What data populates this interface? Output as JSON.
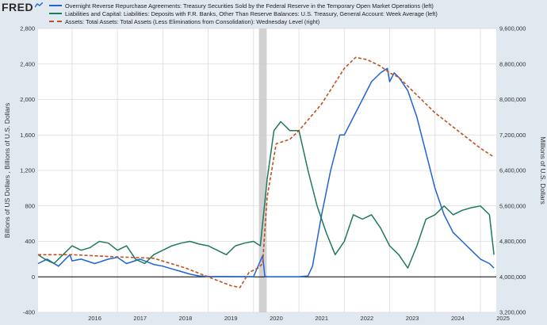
{
  "logo": {
    "text": "FRED",
    "mark_icon": "fred-line-icon"
  },
  "legend": [
    {
      "label": "Overnight Reverse Repurchase Agreements: Treasury Securities Sold by the Federal Reserve in the Temporary Open Market Operations (left)",
      "color": "#1f63d8",
      "style": "solid"
    },
    {
      "label": "Liabilities and Capital: Liabilities: Deposits with F.R. Banks, Other Than Reserve Balances: U.S. Treasury, General Account: Week Average (left)",
      "color": "#1e7a5a",
      "style": "solid"
    },
    {
      "label": "Assets: Total Assets: Total Assets (Less Eliminations from Consolidation): Wednesday Level (right)",
      "color": "#c0501f",
      "style": "dashed"
    }
  ],
  "chart_data": {
    "type": "line",
    "ylabel": "Billions of US Dollars , Billions of U.S. Dollars",
    "y2label": "Millions of U.S. Dollars",
    "ylim": [
      -400,
      2800
    ],
    "y2lim": [
      3200000,
      9600000
    ],
    "xlim": [
      2015.25,
      2025.35
    ],
    "x_ticks": [
      "2016",
      "2017",
      "2018",
      "2019",
      "2020",
      "2021",
      "2022",
      "2023",
      "2024",
      "2025"
    ],
    "y_ticks": [
      "-400",
      "0",
      "400",
      "800",
      "1,200",
      "1,600",
      "2,000",
      "2,400",
      "2,800"
    ],
    "y2_ticks": [
      "3,200,000",
      "4,000,000",
      "4,800,000",
      "5,600,000",
      "6,400,000",
      "7,200,000",
      "8,000,000",
      "8,800,000",
      "9,600,000"
    ],
    "grid": true,
    "recession_shading": [
      2020.12,
      2020.29
    ],
    "series": [
      {
        "name": "Overnight Reverse Repurchase Agreements: Treasury Securities Sold by the Federal Reserve in the Temporary Open Market Operations (left)",
        "axis": "left",
        "color": "#1f63d8",
        "x": [
          2015.25,
          2015.45,
          2015.7,
          2015.95,
          2016.0,
          2016.2,
          2016.5,
          2016.8,
          2017.0,
          2017.2,
          2017.5,
          2017.8,
          2018.0,
          2018.2,
          2018.4,
          2018.6,
          2018.8,
          2019.0,
          2019.5,
          2020.0,
          2020.2,
          2020.25,
          2020.3,
          2020.5,
          2021.0,
          2021.2,
          2021.3,
          2021.5,
          2021.7,
          2021.9,
          2022.0,
          2022.2,
          2022.4,
          2022.6,
          2022.8,
          2022.95,
          2023.0,
          2023.1,
          2023.2,
          2023.4,
          2023.6,
          2023.8,
          2024.0,
          2024.2,
          2024.4,
          2024.6,
          2024.8,
          2025.0,
          2025.2,
          2025.3
        ],
        "y": [
          150,
          200,
          120,
          250,
          180,
          200,
          150,
          200,
          220,
          150,
          200,
          140,
          120,
          90,
          60,
          30,
          10,
          5,
          3,
          2,
          240,
          5,
          2,
          1,
          1,
          10,
          120,
          700,
          1200,
          1600,
          1600,
          1800,
          2000,
          2200,
          2300,
          2350,
          2200,
          2300,
          2250,
          2100,
          1800,
          1400,
          1000,
          700,
          500,
          400,
          300,
          200,
          150,
          100
        ]
      },
      {
        "name": "Liabilities and Capital: Liabilities: Deposits with F.R. Banks, Other Than Reserve Balances: U.S. Treasury, General Account: Week Average (left)",
        "axis": "left",
        "color": "#1e7a5a",
        "x": [
          2015.25,
          2015.4,
          2015.6,
          2015.8,
          2016.0,
          2016.2,
          2016.4,
          2016.6,
          2016.8,
          2017.0,
          2017.2,
          2017.4,
          2017.6,
          2017.8,
          2018.0,
          2018.2,
          2018.4,
          2018.6,
          2018.8,
          2019.0,
          2019.2,
          2019.4,
          2019.6,
          2019.8,
          2020.0,
          2020.15,
          2020.3,
          2020.45,
          2020.6,
          2020.8,
          2021.0,
          2021.2,
          2021.4,
          2021.6,
          2021.8,
          2022.0,
          2022.2,
          2022.4,
          2022.6,
          2022.8,
          2023.0,
          2023.2,
          2023.4,
          2023.6,
          2023.8,
          2024.0,
          2024.2,
          2024.4,
          2024.6,
          2024.8,
          2025.0,
          2025.2,
          2025.3
        ],
        "y": [
          250,
          200,
          150,
          250,
          350,
          300,
          330,
          400,
          380,
          300,
          350,
          200,
          150,
          250,
          300,
          350,
          380,
          400,
          370,
          350,
          300,
          250,
          350,
          380,
          400,
          350,
          1100,
          1650,
          1750,
          1650,
          1650,
          1200,
          800,
          500,
          250,
          400,
          700,
          650,
          700,
          550,
          350,
          250,
          100,
          350,
          650,
          700,
          800,
          700,
          750,
          780,
          800,
          700,
          250
        ]
      },
      {
        "name": "Assets: Total Assets: Total Assets (Less Eliminations from Consolidation): Wednesday Level (right)",
        "axis": "right",
        "color": "#c0501f",
        "x": [
          2015.25,
          2016.0,
          2017.0,
          2017.8,
          2018.5,
          2019.0,
          2019.5,
          2019.7,
          2019.9,
          2020.1,
          2020.2,
          2020.3,
          2020.5,
          2020.8,
          2021.0,
          2021.5,
          2022.0,
          2022.25,
          2022.5,
          2022.8,
          2023.0,
          2023.2,
          2023.5,
          2023.8,
          2024.0,
          2024.5,
          2025.0,
          2025.3
        ],
        "y": [
          4500000,
          4500000,
          4450000,
          4420000,
          4200000,
          4000000,
          3800000,
          3760000,
          4100000,
          4200000,
          4300000,
          5800000,
          7000000,
          7100000,
          7300000,
          7900000,
          8700000,
          8950000,
          8900000,
          8750000,
          8600000,
          8500000,
          8200000,
          7900000,
          7700000,
          7300000,
          6900000,
          6700000
        ]
      }
    ]
  }
}
